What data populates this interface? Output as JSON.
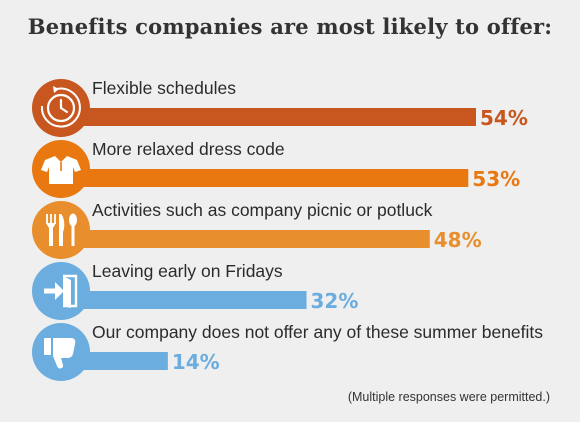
{
  "title": "Benefits companies are most likely to offer:",
  "footnote": "(Multiple responses were permitted.)",
  "chart_data": {
    "type": "bar",
    "orientation": "horizontal",
    "categories": [
      "Flexible schedules",
      "More relaxed dress code",
      "Activities such as company picnic or potluck",
      "Leaving early on Fridays",
      "Our company does not offer any of these summer benefits"
    ],
    "values": [
      54,
      53,
      48,
      32,
      14
    ],
    "value_labels": [
      "54%",
      "53%",
      "48%",
      "32%",
      "14%"
    ],
    "icons": [
      "clock-icon",
      "polo-shirt-icon",
      "fork-knife-spoon-icon",
      "exit-door-icon",
      "thumbs-down-icon"
    ],
    "colors": [
      "#c8561f",
      "#e8780f",
      "#e98e2c",
      "#6badde",
      "#6badde"
    ],
    "unit": "%",
    "xlim": [
      0,
      54
    ],
    "grid": false,
    "legend": "none"
  }
}
